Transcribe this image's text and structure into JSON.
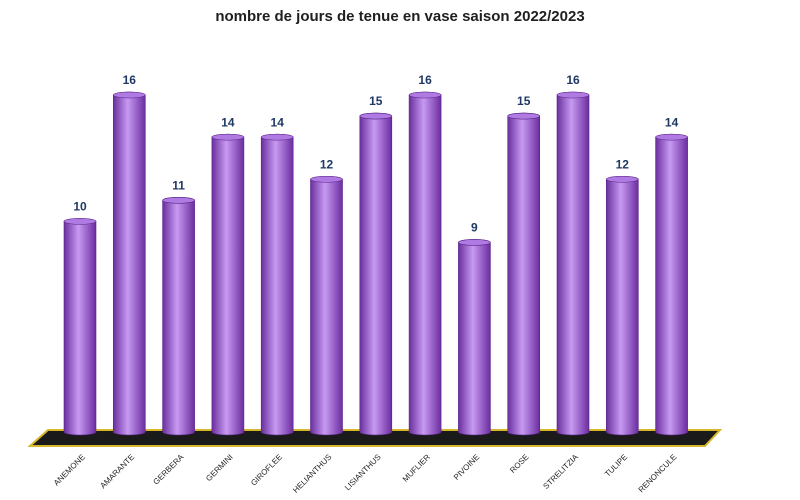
{
  "chart_data": {
    "type": "bar",
    "title": "nombre de jours de tenue en vase saison 2022/2023",
    "categories": [
      "ANEMONE",
      "AMARANTE",
      "GERBERA",
      "GERMINI",
      "GIROFLEE",
      "HELIANTHUS",
      "LISIANTHUS",
      "MUFLIER",
      "PIVOINE",
      "ROSE",
      "STRELITZIA",
      "TULIPE",
      "RENONCULE"
    ],
    "values": [
      10,
      16,
      11,
      14,
      14,
      12,
      15,
      16,
      9,
      15,
      16,
      12,
      14
    ],
    "color": "#9b5fd6"
  }
}
